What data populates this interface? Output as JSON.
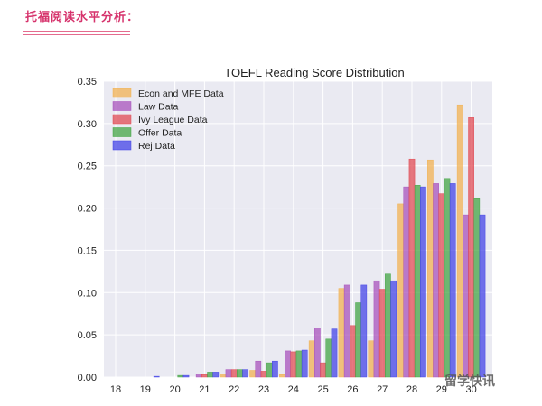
{
  "header": {
    "title": "托福阅读水平分析："
  },
  "watermark": {
    "text": "留学快讯"
  },
  "chart_data": {
    "type": "bar",
    "title": "TOEFL Reading Score Distribution",
    "xlabel": "",
    "ylabel": "",
    "ylim": [
      0,
      0.35
    ],
    "yticks": [
      0.0,
      0.05,
      0.1,
      0.15,
      0.2,
      0.25,
      0.3,
      0.35
    ],
    "grid": true,
    "legend_position": "top-left",
    "categories": [
      "18",
      "19",
      "20",
      "21",
      "22",
      "23",
      "24",
      "25",
      "26",
      "27",
      "28",
      "29",
      "30"
    ],
    "series": [
      {
        "name": "Econ and MFE Data",
        "color": "#f2b04c",
        "values": [
          0.0,
          0.0,
          0.0,
          0.0,
          0.004,
          0.008,
          0.003,
          0.043,
          0.105,
          0.043,
          0.205,
          0.257,
          0.322
        ]
      },
      {
        "name": "Law Data",
        "color": "#a64dba",
        "values": [
          0.0,
          0.0,
          0.0,
          0.004,
          0.009,
          0.019,
          0.031,
          0.058,
          0.109,
          0.114,
          0.225,
          0.229,
          0.192
        ]
      },
      {
        "name": "Ivy League Data",
        "color": "#e1454d",
        "values": [
          0.0,
          0.0,
          0.0,
          0.003,
          0.009,
          0.007,
          0.03,
          0.017,
          0.061,
          0.104,
          0.258,
          0.217,
          0.307
        ]
      },
      {
        "name": "Offer Data",
        "color": "#3fa33f",
        "values": [
          0.0,
          0.0,
          0.002,
          0.006,
          0.009,
          0.017,
          0.031,
          0.045,
          0.088,
          0.122,
          0.227,
          0.235,
          0.211
        ]
      },
      {
        "name": "Rej Data",
        "color": "#3e3ee6",
        "values": [
          0.0,
          0.001,
          0.002,
          0.006,
          0.009,
          0.019,
          0.032,
          0.057,
          0.109,
          0.114,
          0.225,
          0.229,
          0.192
        ]
      }
    ]
  }
}
